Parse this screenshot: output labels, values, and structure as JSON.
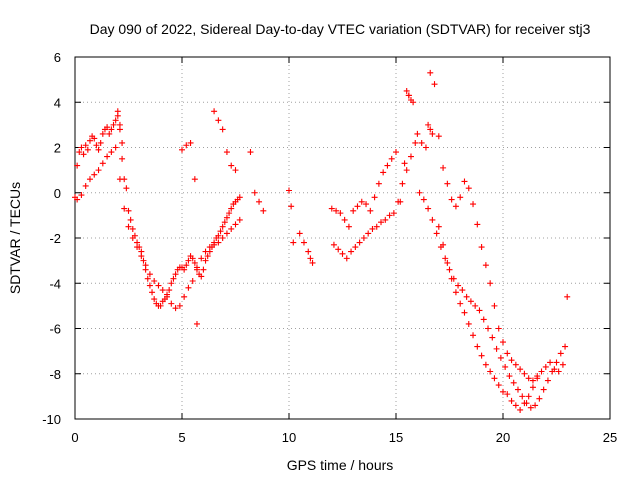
{
  "chart_data": {
    "type": "scatter",
    "title": "Day 090 of 2022, Sidereal Day-to-day VTEC variation (SDTVAR) for receiver stj3",
    "xlabel": "GPS time / hours",
    "ylabel": "SDTVAR / TECUs",
    "xlim": [
      0,
      25
    ],
    "ylim": [
      -10,
      6
    ],
    "xticks": [
      "0",
      "5",
      "10",
      "15",
      "20",
      "25"
    ],
    "yticks": [
      "-10",
      "-8",
      "-6",
      "-4",
      "-2",
      "0",
      "2",
      "4",
      "6"
    ],
    "grid": true,
    "marker": "+",
    "color": "#ff0000",
    "series": [
      {
        "name": "SDTVAR",
        "x": [
          0.0,
          0.1,
          0.2,
          0.3,
          0.4,
          0.5,
          0.6,
          0.7,
          0.8,
          0.9,
          1.0,
          1.1,
          1.2,
          1.3,
          1.4,
          1.5,
          1.6,
          1.7,
          1.8,
          1.9,
          2.0,
          2.1,
          2.2,
          2.3,
          2.4,
          2.5,
          2.6,
          2.7,
          2.8,
          2.9,
          3.0,
          3.1,
          3.2,
          3.3,
          3.4,
          3.5,
          3.6,
          3.7,
          3.8,
          3.9,
          4.0,
          4.1,
          4.2,
          4.3,
          4.4,
          4.5,
          4.6,
          4.7,
          4.8,
          4.9,
          5.0,
          5.1,
          5.2,
          5.3,
          5.4,
          5.5,
          5.6,
          5.7,
          5.8,
          5.9,
          6.0,
          6.1,
          6.2,
          6.3,
          6.4,
          6.5,
          6.6,
          6.7,
          6.8,
          6.9,
          7.0,
          7.1,
          7.2,
          7.3,
          7.4,
          7.5,
          7.6,
          7.7,
          8.2,
          8.4,
          8.6,
          8.8,
          10.0,
          10.1,
          10.2,
          10.5,
          10.7,
          10.9,
          11.0,
          11.1,
          12.0,
          12.2,
          12.4,
          12.6,
          12.8,
          13.0,
          13.2,
          13.4,
          13.6,
          13.8,
          14.0,
          14.2,
          14.4,
          14.6,
          14.8,
          15.0,
          15.2,
          15.4,
          15.6,
          15.8,
          16.0,
          16.2,
          16.4,
          16.6,
          16.8,
          17.0,
          17.2,
          17.4,
          17.6,
          17.8,
          18.0,
          18.2,
          18.4,
          18.6,
          18.8,
          19.0,
          19.2,
          19.4,
          19.6,
          19.8,
          20.0,
          20.2,
          20.4,
          20.6,
          20.8,
          21.0,
          21.2,
          21.4,
          21.6,
          21.8,
          22.0,
          22.2,
          22.4,
          22.6,
          22.8,
          23.0,
          0.1,
          0.3,
          0.5,
          0.7,
          0.9,
          1.1,
          1.3,
          1.5,
          1.7,
          1.9,
          2.1,
          2.3,
          2.5,
          2.7,
          2.9,
          3.1,
          3.3,
          3.5,
          3.7,
          3.9,
          4.1,
          4.3,
          4.5,
          4.7,
          4.9,
          5.1,
          5.3,
          5.5,
          5.7,
          5.9,
          6.1,
          6.3,
          6.5,
          6.7,
          6.9,
          7.1,
          7.3,
          7.5,
          7.7,
          2.0,
          2.1,
          2.2,
          5.0,
          5.2,
          5.4,
          5.6,
          5.7,
          6.5,
          6.7,
          6.9,
          7.1,
          7.3,
          7.5,
          12.1,
          12.3,
          12.5,
          12.7,
          12.9,
          13.1,
          13.3,
          13.5,
          13.7,
          13.9,
          14.1,
          14.3,
          14.5,
          14.7,
          14.9,
          15.1,
          15.3,
          15.5,
          15.7,
          15.9,
          16.1,
          16.3,
          16.5,
          16.7,
          16.9,
          17.1,
          17.3,
          17.5,
          17.7,
          17.9,
          18.1,
          18.3,
          18.5,
          18.7,
          18.9,
          19.1,
          19.3,
          19.5,
          19.7,
          19.9,
          20.1,
          20.3,
          20.5,
          20.7,
          20.9,
          21.1,
          21.3,
          21.5,
          21.7,
          21.9,
          22.1,
          22.3,
          22.5,
          22.7,
          22.9,
          15.5,
          15.6,
          15.7,
          16.5,
          16.6,
          16.7,
          17.0,
          17.2,
          17.4,
          17.6,
          17.8,
          18.0,
          18.2,
          18.4,
          18.6,
          18.8,
          19.0,
          19.2,
          19.4,
          19.6,
          19.8,
          20.0,
          20.2,
          20.4,
          20.6,
          20.8,
          21.0,
          21.2,
          21.4,
          21.6
        ],
        "y": [
          -0.2,
          1.2,
          1.8,
          2.0,
          1.7,
          2.1,
          1.9,
          2.3,
          2.5,
          2.4,
          2.1,
          1.9,
          2.2,
          2.6,
          2.8,
          2.9,
          2.6,
          2.8,
          3.0,
          3.2,
          3.4,
          2.8,
          1.5,
          0.6,
          0.2,
          -0.8,
          -1.2,
          -1.6,
          -1.9,
          -2.2,
          -2.4,
          -2.6,
          -3.0,
          -3.4,
          -3.8,
          -4.1,
          -4.4,
          -4.7,
          -4.9,
          -5.0,
          -5.0,
          -4.8,
          -4.7,
          -4.5,
          -4.3,
          -4.0,
          -3.8,
          -3.6,
          -3.4,
          -3.3,
          -3.3,
          -3.4,
          -3.2,
          -3.0,
          -2.8,
          -2.9,
          -3.1,
          -3.3,
          -3.6,
          -3.7,
          -3.4,
          -3.0,
          -2.8,
          -2.6,
          -2.4,
          -2.2,
          -2.0,
          -1.9,
          -1.7,
          -1.5,
          -1.3,
          -1.1,
          -0.9,
          -0.7,
          -0.5,
          -0.4,
          -0.3,
          -0.2,
          1.8,
          0.0,
          -0.4,
          -0.8,
          0.1,
          -0.6,
          -2.2,
          -1.8,
          -2.2,
          -2.6,
          -2.9,
          -3.1,
          -0.7,
          -0.8,
          -0.9,
          -1.2,
          -1.5,
          -0.8,
          -0.6,
          -0.4,
          -0.5,
          -0.8,
          -0.2,
          0.4,
          0.9,
          1.2,
          1.5,
          1.8,
          -0.4,
          1.3,
          4.3,
          4.0,
          2.6,
          2.2,
          2.0,
          5.3,
          4.8,
          2.5,
          1.1,
          0.4,
          -0.3,
          -0.6,
          -0.2,
          0.5,
          0.2,
          -0.5,
          -1.4,
          -2.4,
          -3.2,
          -4.0,
          -5.0,
          -6.0,
          -6.6,
          -7.1,
          -7.4,
          -7.6,
          -7.8,
          -8.0,
          -8.2,
          -8.3,
          -8.1,
          -7.9,
          -7.7,
          -7.5,
          -7.8,
          -7.9,
          -7.6,
          -4.6,
          -0.3,
          -0.1,
          0.3,
          0.6,
          0.8,
          1.0,
          1.3,
          1.6,
          1.8,
          2.0,
          0.6,
          -0.7,
          -1.5,
          -2.0,
          -2.4,
          -2.8,
          -3.2,
          -3.6,
          -3.9,
          -4.1,
          -4.3,
          -4.6,
          -4.9,
          -5.1,
          -5.0,
          -4.6,
          -4.2,
          -3.9,
          -3.4,
          -2.9,
          -2.6,
          -2.4,
          -2.3,
          -2.2,
          -2.0,
          -1.8,
          -1.6,
          -1.4,
          -1.2,
          3.6,
          3.0,
          2.2,
          1.9,
          2.1,
          2.2,
          0.6,
          -5.8,
          3.6,
          3.2,
          2.8,
          1.8,
          1.2,
          1.0,
          -2.3,
          -2.5,
          -2.7,
          -2.9,
          -2.6,
          -2.4,
          -2.2,
          -2.0,
          -1.8,
          -1.6,
          -1.5,
          -1.3,
          -1.2,
          -1.0,
          -0.9,
          -0.4,
          0.4,
          1.0,
          1.6,
          2.2,
          0.0,
          -0.3,
          -0.7,
          -1.2,
          -1.8,
          -2.4,
          -2.9,
          -3.4,
          -3.8,
          -4.1,
          -4.3,
          -4.6,
          -4.8,
          -5.0,
          -5.2,
          -5.6,
          -6.0,
          -6.4,
          -6.9,
          -7.3,
          -7.7,
          -8.1,
          -8.4,
          -8.7,
          -9.0,
          -9.3,
          -9.5,
          -9.4,
          -9.1,
          -8.7,
          -8.3,
          -7.9,
          -7.5,
          -7.1,
          -6.8,
          4.5,
          4.3,
          4.1,
          3.0,
          2.8,
          2.6,
          -1.5,
          -2.3,
          -3.1,
          -3.8,
          -4.4,
          -4.9,
          -5.3,
          -5.8,
          -6.3,
          -6.8,
          -7.2,
          -7.6,
          -7.9,
          -8.2,
          -8.5,
          -8.8,
          -8.9,
          -9.2,
          -9.4,
          -9.6,
          -9.3,
          -9.0,
          -8.6,
          -8.2
        ]
      }
    ]
  }
}
